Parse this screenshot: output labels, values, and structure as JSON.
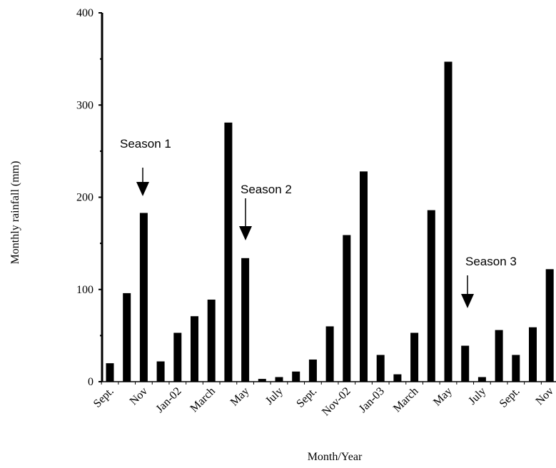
{
  "chart_data": {
    "type": "bar",
    "categories": [
      "Sept.",
      null,
      "Nov",
      null,
      "Jan-02",
      null,
      "March",
      null,
      "May",
      null,
      "July",
      null,
      "Sept.",
      null,
      "Nov-02",
      null,
      "Jan-03",
      null,
      "March",
      null,
      "May",
      null,
      "July",
      null,
      "Sept.",
      null,
      "Nov"
    ],
    "values": [
      20,
      96,
      183,
      22,
      53,
      71,
      89,
      281,
      134,
      3,
      5,
      11,
      24,
      60,
      159,
      228,
      29,
      8,
      53,
      186,
      347,
      39,
      5,
      56,
      29,
      59,
      122
    ],
    "color": "#000000",
    "ylim": [
      0,
      400
    ],
    "yticks": [
      0,
      100,
      200,
      300,
      400
    ],
    "minor_yticks": [
      50,
      150,
      250,
      350
    ],
    "ylabel": "Monthly rainfall (mm)",
    "xlabel": "Month/Year",
    "annotations": [
      "Season 1",
      "Season 2",
      "Season 3"
    ]
  }
}
